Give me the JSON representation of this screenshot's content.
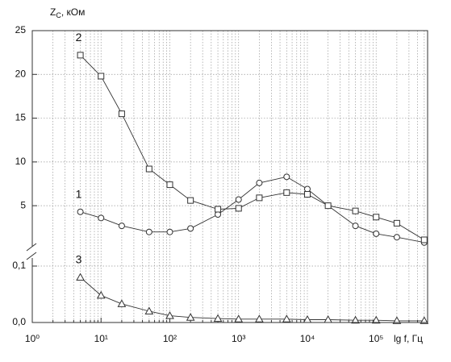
{
  "chart_data": {
    "type": "line",
    "y_label": {
      "main": "Z",
      "sub": "C",
      "unit": ", кОм"
    },
    "x_label": "lg f, Гц",
    "xscale": "log",
    "grid": true,
    "xlim": [
      1,
      560000
    ],
    "xticks": [
      {
        "value": 1,
        "label": "10⁰"
      },
      {
        "value": 10,
        "label": "10¹"
      },
      {
        "value": 100,
        "label": "10²"
      },
      {
        "value": 1000,
        "label": "10³"
      },
      {
        "value": 10000,
        "label": "10⁴"
      },
      {
        "value": 100000,
        "label": "10⁵"
      }
    ],
    "xminorticks": [
      2,
      3,
      4,
      5,
      6,
      7,
      8,
      9,
      20,
      30,
      40,
      50,
      60,
      70,
      80,
      90,
      200,
      300,
      400,
      500,
      600,
      700,
      800,
      900,
      2000,
      3000,
      4000,
      5000,
      6000,
      7000,
      8000,
      9000,
      20000,
      30000,
      40000,
      50000,
      60000,
      70000,
      80000,
      90000,
      200000,
      300000,
      400000,
      500000
    ],
    "y_segments": [
      {
        "ylim": [
          0,
          0.13
        ],
        "yticks": [
          {
            "value": 0,
            "label": "0,0"
          },
          {
            "value": 0.1,
            "label": "0,1"
          }
        ]
      },
      {
        "ylim": [
          0.5,
          25
        ],
        "yticks": [
          5,
          10,
          15,
          20,
          25
        ]
      }
    ],
    "x": [
      5,
      10,
      20,
      50,
      100,
      200,
      500,
      1000,
      2000,
      5000,
      10000,
      20000,
      50000,
      100000,
      200000,
      500000
    ],
    "series": [
      {
        "name": "1",
        "marker": "circle",
        "color": "#333333",
        "values": [
          4.3,
          3.6,
          2.7,
          2.0,
          2.0,
          2.4,
          4.0,
          5.7,
          7.6,
          8.3,
          6.9,
          5.0,
          2.7,
          1.8,
          1.4,
          0.8
        ]
      },
      {
        "name": "2",
        "marker": "square",
        "color": "#333333",
        "values": [
          22.2,
          19.8,
          15.5,
          9.2,
          7.4,
          5.6,
          4.6,
          4.7,
          5.9,
          6.5,
          6.3,
          5.0,
          4.4,
          3.7,
          3.0,
          1.1
        ]
      },
      {
        "name": "3",
        "marker": "triangle",
        "color": "#333333",
        "values": [
          0.08,
          0.048,
          0.033,
          0.02,
          0.012,
          0.009,
          0.007,
          0.006,
          0.006,
          0.006,
          0.005,
          0.005,
          0.004,
          0.004,
          0.003,
          0.003
        ]
      }
    ]
  }
}
